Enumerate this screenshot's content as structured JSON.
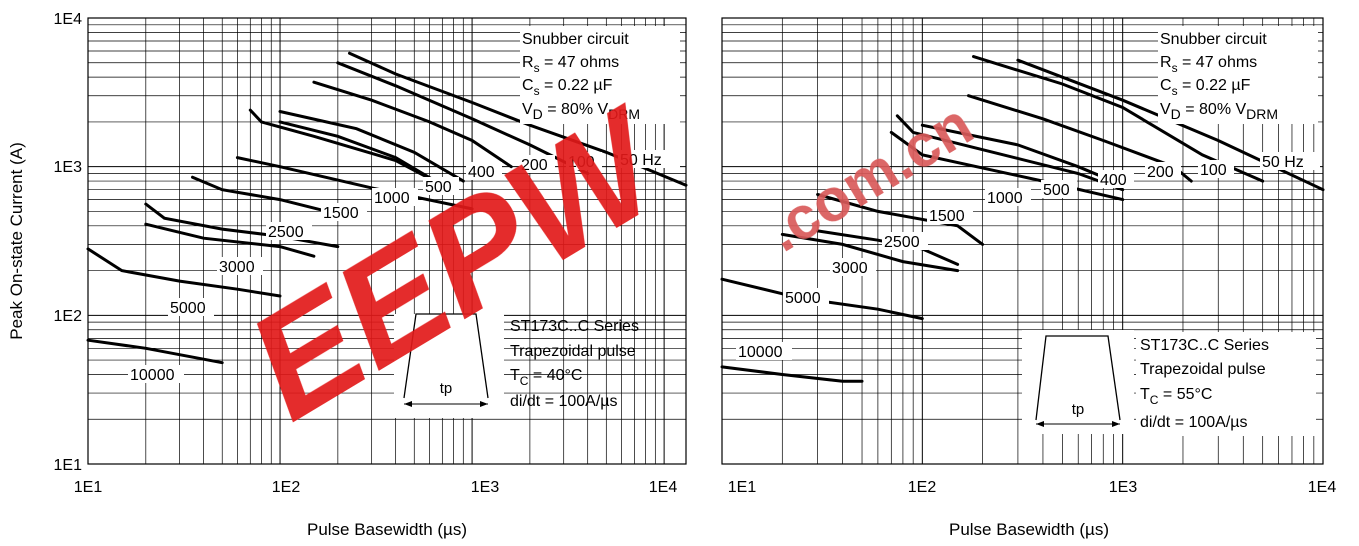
{
  "colors": {
    "curve": "#000000",
    "grid": "#000000",
    "watermark": "#e21a1a",
    "watermark_cn": "#d95a5a"
  },
  "watermark": {
    "text": "EEPW",
    "sub": ".com.cn"
  },
  "chart_data": [
    {
      "type": "line",
      "xscale": "log",
      "yscale": "log",
      "xlim": [
        10,
        13000
      ],
      "ylim": [
        10,
        10000
      ],
      "xticks": [
        "1E1",
        "1E2",
        "1E3",
        "1E4"
      ],
      "yticks": [
        "1E1",
        "1E2",
        "1E3",
        "1E4"
      ],
      "xlabel": "Pulse Basewidth (µs)",
      "ylabel": "Peak On-state Current (A)",
      "grid": true,
      "info_top": [
        "Snubber circuit",
        "R",
        "s",
        " = 47 ohms",
        "C",
        "s",
        " = 0.22 µF",
        "V",
        "D",
        " = 80% V",
        "DRM"
      ],
      "info_bottom": [
        "ST173C..C Series",
        "Trapezoidal pulse",
        "T",
        "C",
        " = 40°C",
        "di/dt = 100A/µs"
      ],
      "pulse_label": "tp",
      "series": [
        {
          "name": "50 Hz",
          "points": [
            [
              230,
              5800
            ],
            [
              400,
              4200
            ],
            [
              1000,
              2700
            ],
            [
              2000,
              1900
            ],
            [
              5000,
              1250
            ],
            [
              13000,
              750
            ]
          ]
        },
        {
          "name": "100",
          "points": [
            [
              200,
              5000
            ],
            [
              400,
              3500
            ],
            [
              1000,
              2100
            ],
            [
              2000,
              1400
            ],
            [
              4000,
              900
            ]
          ]
        },
        {
          "name": "200",
          "points": [
            [
              150,
              3700
            ],
            [
              300,
              2800
            ],
            [
              600,
              2000
            ],
            [
              1000,
              1500
            ],
            [
              1600,
              1000
            ]
          ]
        },
        {
          "name": "400",
          "points": [
            [
              100,
              2350
            ],
            [
              250,
              1800
            ],
            [
              500,
              1250
            ],
            [
              900,
              800
            ]
          ]
        },
        {
          "name": "500",
          "points": [
            [
              100,
              2000
            ],
            [
              200,
              1600
            ],
            [
              400,
              1150
            ],
            [
              700,
              750
            ]
          ]
        },
        {
          "name": "1000",
          "points": [
            [
              70,
              2400
            ],
            [
              80,
              2000
            ],
            [
              150,
              1600
            ],
            [
              400,
              1100
            ],
            [
              700,
              750
            ]
          ]
        },
        {
          "name": "1500",
          "points": [
            [
              60,
              1150
            ],
            [
              100,
              1000
            ],
            [
              300,
              720
            ],
            [
              1000,
              520
            ]
          ]
        },
        {
          "name": "2500",
          "points": [
            [
              35,
              850
            ],
            [
              50,
              700
            ],
            [
              100,
              600
            ],
            [
              200,
              480
            ]
          ]
        },
        {
          "name": "3000",
          "points": [
            [
              20,
              560
            ],
            [
              25,
              450
            ],
            [
              50,
              380
            ],
            [
              100,
              340
            ],
            [
              200,
              290
            ]
          ]
        },
        {
          "name": "5000",
          "points": [
            [
              20,
              410
            ],
            [
              40,
              330
            ],
            [
              100,
              290
            ],
            [
              150,
              250
            ]
          ]
        },
        {
          "name": "10000",
          "points": [
            [
              10,
              280
            ],
            [
              15,
              200
            ],
            [
              30,
              170
            ],
            [
              60,
              150
            ],
            [
              100,
              135
            ]
          ]
        },
        {
          "name": "10000b",
          "points": [
            [
              10,
              68
            ],
            [
              20,
              60
            ],
            [
              50,
              48
            ]
          ]
        }
      ],
      "curve_labels": [
        "50 Hz",
        "100",
        "200",
        "400",
        "500",
        "1000",
        "1500",
        "2500",
        "3000",
        "5000",
        "10000"
      ]
    },
    {
      "type": "line",
      "xscale": "log",
      "yscale": "log",
      "xlim": [
        10,
        10000
      ],
      "ylim": [
        10,
        10000
      ],
      "xticks": [
        "1E1",
        "1E2",
        "1E3",
        "1E4"
      ],
      "xlabel": "Pulse Basewidth (µs)",
      "grid": true,
      "info_top": [
        "Snubber circuit",
        "R",
        "s",
        " = 47 ohms",
        "C",
        "s",
        " = 0.22 µF",
        "V",
        "D",
        " = 80% V",
        "DRM"
      ],
      "info_bottom": [
        "ST173C..C Series",
        "Trapezoidal pulse",
        "T",
        "C",
        " = 55°C",
        "di/dt = 100A/µs"
      ],
      "pulse_label": "tp",
      "series": [
        {
          "name": "50 Hz",
          "points": [
            [
              300,
              5200
            ],
            [
              1000,
              2800
            ],
            [
              3000,
              1500
            ],
            [
              10000,
              700
            ]
          ]
        },
        {
          "name": "100",
          "points": [
            [
              180,
              5500
            ],
            [
              500,
              3600
            ],
            [
              1000,
              2500
            ],
            [
              2500,
              1200
            ],
            [
              5000,
              800
            ]
          ]
        },
        {
          "name": "200",
          "points": [
            [
              170,
              3000
            ],
            [
              400,
              2100
            ],
            [
              800,
              1500
            ],
            [
              1800,
              1000
            ],
            [
              2200,
              800
            ]
          ]
        },
        {
          "name": "400",
          "points": [
            [
              100,
              1900
            ],
            [
              300,
              1400
            ],
            [
              600,
              1000
            ],
            [
              1000,
              750
            ]
          ]
        },
        {
          "name": "500",
          "points": [
            [
              75,
              2200
            ],
            [
              90,
              1700
            ],
            [
              200,
              1300
            ],
            [
              600,
              900
            ],
            [
              1000,
              700
            ]
          ]
        },
        {
          "name": "1000",
          "points": [
            [
              70,
              1700
            ],
            [
              100,
              1200
            ],
            [
              400,
              800
            ],
            [
              1000,
              600
            ]
          ]
        },
        {
          "name": "1500",
          "points": [
            [
              30,
              650
            ],
            [
              60,
              500
            ],
            [
              150,
              400
            ],
            [
              200,
              300
            ]
          ]
        },
        {
          "name": "2500",
          "points": [
            [
              20,
              350
            ],
            [
              40,
              300
            ],
            [
              80,
              230
            ],
            [
              150,
              200
            ]
          ]
        },
        {
          "name": "3000",
          "points": [
            [
              30,
              370
            ],
            [
              60,
              320
            ],
            [
              100,
              280
            ],
            [
              150,
              220
            ]
          ]
        },
        {
          "name": "5000",
          "points": [
            [
              10,
              175
            ],
            [
              25,
              130
            ],
            [
              60,
              110
            ],
            [
              100,
              95
            ]
          ]
        },
        {
          "name": "10000",
          "points": [
            [
              10,
              45
            ],
            [
              20,
              40
            ],
            [
              40,
              36
            ],
            [
              50,
              36
            ]
          ]
        }
      ],
      "curve_labels": [
        "50 Hz",
        "100",
        "200",
        "400",
        "500",
        "1000",
        "1500",
        "2500",
        "3000",
        "5000",
        "10000"
      ]
    }
  ]
}
